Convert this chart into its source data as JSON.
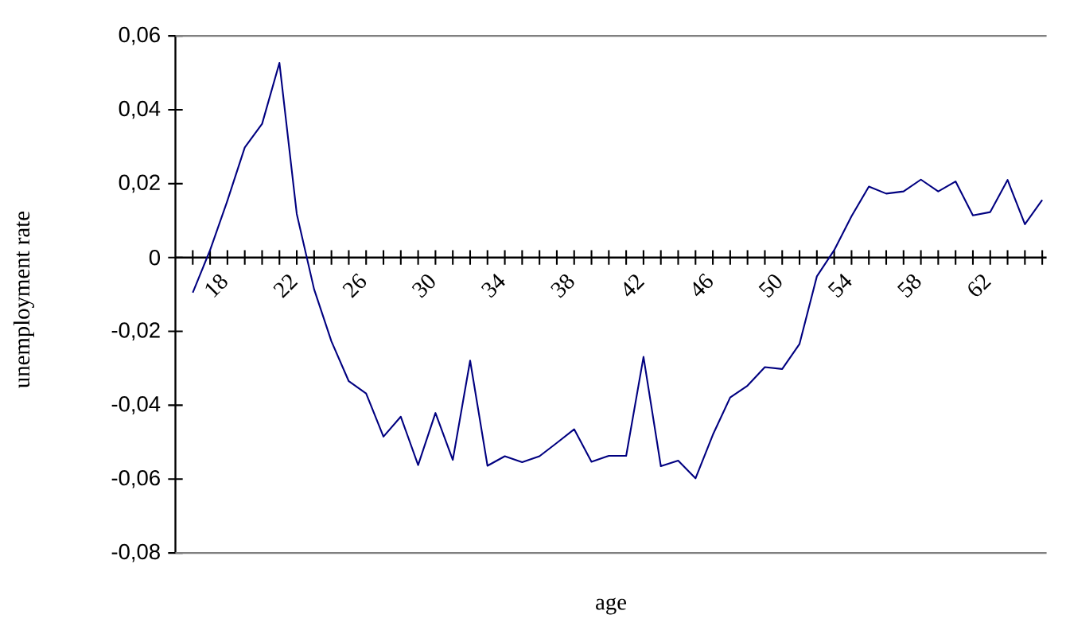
{
  "chart_data": {
    "type": "line",
    "xlabel": "age",
    "ylabel": "unemployment rate",
    "x": [
      17,
      18,
      19,
      20,
      21,
      22,
      23,
      24,
      25,
      26,
      27,
      28,
      29,
      30,
      31,
      32,
      33,
      34,
      35,
      36,
      37,
      38,
      39,
      40,
      41,
      42,
      43,
      44,
      45,
      46,
      47,
      48,
      49,
      50,
      51,
      52,
      53,
      54,
      55,
      56,
      57,
      58,
      59,
      60,
      61,
      62,
      63,
      64,
      65,
      66
    ],
    "values": [
      -0.0095,
      0.002,
      0.0154,
      0.0298,
      0.0362,
      0.0527,
      0.0118,
      -0.0086,
      -0.0227,
      -0.0335,
      -0.0368,
      -0.0485,
      -0.0431,
      -0.0562,
      -0.0421,
      -0.0548,
      -0.0279,
      -0.0564,
      -0.0538,
      -0.0554,
      -0.0538,
      -0.0502,
      -0.0465,
      -0.0553,
      -0.0537,
      -0.0537,
      -0.0269,
      -0.0565,
      -0.055,
      -0.0598,
      -0.048,
      -0.0379,
      -0.0347,
      -0.0297,
      -0.0302,
      -0.0234,
      -0.0051,
      0.002,
      0.0112,
      0.0192,
      0.0173,
      0.0179,
      0.0211,
      0.0179,
      0.0206,
      0.0114,
      0.0123,
      0.021,
      0.009,
      0.0156
    ],
    "color": "#000080",
    "xlim": [
      16,
      66.25
    ],
    "ylim": [
      -0.08,
      0.06
    ],
    "xticks": [
      {
        "value": 17,
        "label": null
      },
      18,
      {
        "value": 19,
        "label": null
      },
      {
        "value": 20,
        "label": null
      },
      {
        "value": 21,
        "label": null
      },
      22,
      {
        "value": 23,
        "label": null
      },
      {
        "value": 24,
        "label": null
      },
      {
        "value": 25,
        "label": null
      },
      26,
      {
        "value": 27,
        "label": null
      },
      {
        "value": 28,
        "label": null
      },
      {
        "value": 29,
        "label": null
      },
      30,
      {
        "value": 31,
        "label": null
      },
      {
        "value": 32,
        "label": null
      },
      {
        "value": 33,
        "label": null
      },
      34,
      {
        "value": 35,
        "label": null
      },
      {
        "value": 36,
        "label": null
      },
      {
        "value": 37,
        "label": null
      },
      38,
      {
        "value": 39,
        "label": null
      },
      {
        "value": 40,
        "label": null
      },
      {
        "value": 41,
        "label": null
      },
      42,
      {
        "value": 43,
        "label": null
      },
      {
        "value": 44,
        "label": null
      },
      {
        "value": 45,
        "label": null
      },
      46,
      {
        "value": 47,
        "label": null
      },
      {
        "value": 48,
        "label": null
      },
      {
        "value": 49,
        "label": null
      },
      50,
      {
        "value": 51,
        "label": null
      },
      {
        "value": 52,
        "label": null
      },
      {
        "value": 53,
        "label": null
      },
      54,
      {
        "value": 55,
        "label": null
      },
      {
        "value": 56,
        "label": null
      },
      {
        "value": 57,
        "label": null
      },
      58,
      {
        "value": 59,
        "label": null
      },
      {
        "value": 60,
        "label": null
      },
      {
        "value": 61,
        "label": null
      },
      62,
      {
        "value": 63,
        "label": null
      },
      {
        "value": 64,
        "label": null
      },
      {
        "value": 65,
        "label": null
      },
      {
        "value": 66,
        "label": null
      }
    ],
    "yticks": [
      {
        "value": -0.08,
        "label": "-0,08"
      },
      {
        "value": -0.06,
        "label": "-0,06"
      },
      {
        "value": -0.04,
        "label": "-0,04"
      },
      {
        "value": -0.02,
        "label": "-0,02"
      },
      {
        "value": 0,
        "label": "0"
      },
      {
        "value": 0.02,
        "label": "0,02"
      },
      {
        "value": 0.04,
        "label": "0,04"
      },
      {
        "value": 0.06,
        "label": "0,06"
      }
    ],
    "grid": false
  }
}
